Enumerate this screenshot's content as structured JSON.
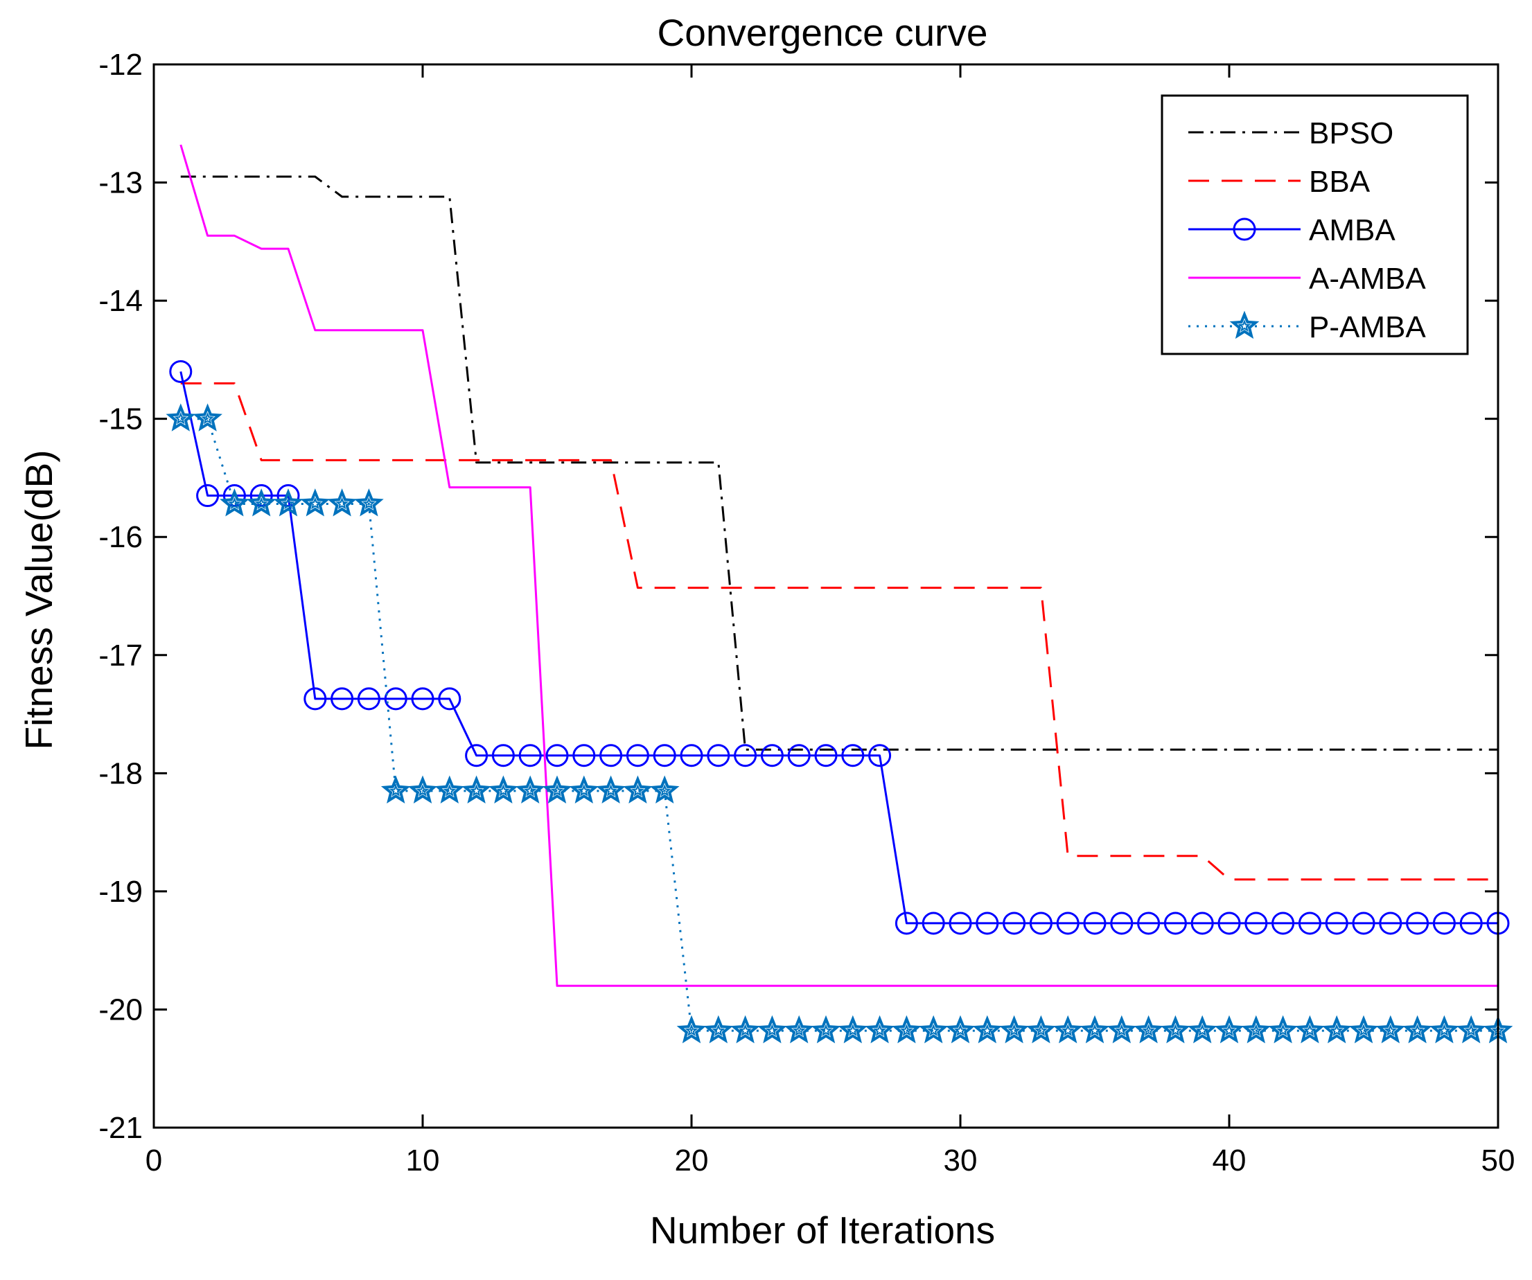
{
  "chart_data": {
    "type": "line",
    "title": "Convergence curve",
    "xlabel": "Number of Iterations",
    "ylabel": "Fitness Value(dB)",
    "xlim": [
      0,
      50
    ],
    "ylim": [
      -21,
      -12
    ],
    "xticks": [
      0,
      10,
      20,
      30,
      40,
      50
    ],
    "xtick_labels": [
      "0",
      "10",
      "20",
      "30",
      "40",
      "50"
    ],
    "yticks": [
      -12,
      -13,
      -14,
      -15,
      -16,
      -17,
      -18,
      -19,
      -20,
      -21
    ],
    "ytick_labels": [
      "-12",
      "-13",
      "-14",
      "-15",
      "-16",
      "-17",
      "-18",
      "-19",
      "-20",
      "-21"
    ],
    "grid": false,
    "legend_position": "top-right",
    "x": [
      1,
      2,
      3,
      4,
      5,
      6,
      7,
      8,
      9,
      10,
      11,
      12,
      13,
      14,
      15,
      16,
      17,
      18,
      19,
      20,
      21,
      22,
      23,
      24,
      25,
      26,
      27,
      28,
      29,
      30,
      31,
      32,
      33,
      34,
      35,
      36,
      37,
      38,
      39,
      40,
      41,
      42,
      43,
      44,
      45,
      46,
      47,
      48,
      49,
      50
    ],
    "series": [
      {
        "name": "BPSO",
        "color": "#000000",
        "line_style": "dashdot",
        "marker": "none",
        "values": [
          -12.95,
          -12.95,
          -12.95,
          -12.95,
          -12.95,
          -12.95,
          -13.12,
          -13.12,
          -13.12,
          -13.12,
          -13.12,
          -15.37,
          -15.37,
          -15.37,
          -15.37,
          -15.37,
          -15.37,
          -15.37,
          -15.37,
          -15.37,
          -15.37,
          -17.8,
          -17.8,
          -17.8,
          -17.8,
          -17.8,
          -17.8,
          -17.8,
          -17.8,
          -17.8,
          -17.8,
          -17.8,
          -17.8,
          -17.8,
          -17.8,
          -17.8,
          -17.8,
          -17.8,
          -17.8,
          -17.8,
          -17.8,
          -17.8,
          -17.8,
          -17.8,
          -17.8,
          -17.8,
          -17.8,
          -17.8,
          -17.8,
          -17.8
        ]
      },
      {
        "name": "BBA",
        "color": "#ff0000",
        "line_style": "dashed",
        "marker": "none",
        "values": [
          -14.7,
          -14.7,
          -14.7,
          -15.35,
          -15.35,
          -15.35,
          -15.35,
          -15.35,
          -15.35,
          -15.35,
          -15.35,
          -15.35,
          -15.35,
          -15.35,
          -15.35,
          -15.35,
          -15.35,
          -16.43,
          -16.43,
          -16.43,
          -16.43,
          -16.43,
          -16.43,
          -16.43,
          -16.43,
          -16.43,
          -16.43,
          -16.43,
          -16.43,
          -16.43,
          -16.43,
          -16.43,
          -16.43,
          -18.7,
          -18.7,
          -18.7,
          -18.7,
          -18.7,
          -18.7,
          -18.9,
          -18.9,
          -18.9,
          -18.9,
          -18.9,
          -18.9,
          -18.9,
          -18.9,
          -18.9,
          -18.9,
          -18.9
        ]
      },
      {
        "name": "AMBA",
        "color": "#0000ff",
        "line_style": "solid",
        "marker": "circle",
        "values": [
          -14.6,
          -15.65,
          -15.65,
          -15.65,
          -15.65,
          -17.37,
          -17.37,
          -17.37,
          -17.37,
          -17.37,
          -17.37,
          -17.85,
          -17.85,
          -17.85,
          -17.85,
          -17.85,
          -17.85,
          -17.85,
          -17.85,
          -17.85,
          -17.85,
          -17.85,
          -17.85,
          -17.85,
          -17.85,
          -17.85,
          -17.85,
          -19.27,
          -19.27,
          -19.27,
          -19.27,
          -19.27,
          -19.27,
          -19.27,
          -19.27,
          -19.27,
          -19.27,
          -19.27,
          -19.27,
          -19.27,
          -19.27,
          -19.27,
          -19.27,
          -19.27,
          -19.27,
          -19.27,
          -19.27,
          -19.27,
          -19.27,
          -19.27
        ]
      },
      {
        "name": "A-AMBA",
        "color": "#ff00ff",
        "line_style": "solid",
        "marker": "none",
        "values": [
          -12.68,
          -13.45,
          -13.45,
          -13.56,
          -13.56,
          -14.25,
          -14.25,
          -14.25,
          -14.25,
          -14.25,
          -15.58,
          -15.58,
          -15.58,
          -15.58,
          -19.8,
          -19.8,
          -19.8,
          -19.8,
          -19.8,
          -19.8,
          -19.8,
          -19.8,
          -19.8,
          -19.8,
          -19.8,
          -19.8,
          -19.8,
          -19.8,
          -19.8,
          -19.8,
          -19.8,
          -19.8,
          -19.8,
          -19.8,
          -19.8,
          -19.8,
          -19.8,
          -19.8,
          -19.8,
          -19.8,
          -19.8,
          -19.8,
          -19.8,
          -19.8,
          -19.8,
          -19.8,
          -19.8,
          -19.8,
          -19.8,
          -19.8
        ]
      },
      {
        "name": "P-AMBA",
        "color": "#0072bd",
        "line_style": "dotted",
        "marker": "star",
        "values": [
          -15.0,
          -15.0,
          -15.72,
          -15.72,
          -15.72,
          -15.72,
          -15.72,
          -15.72,
          -18.15,
          -18.15,
          -18.15,
          -18.15,
          -18.15,
          -18.15,
          -18.15,
          -18.15,
          -18.15,
          -18.15,
          -18.15,
          -20.18,
          -20.18,
          -20.18,
          -20.18,
          -20.18,
          -20.18,
          -20.18,
          -20.18,
          -20.18,
          -20.18,
          -20.18,
          -20.18,
          -20.18,
          -20.18,
          -20.18,
          -20.18,
          -20.18,
          -20.18,
          -20.18,
          -20.18,
          -20.18,
          -20.18,
          -20.18,
          -20.18,
          -20.18,
          -20.18,
          -20.18,
          -20.18,
          -20.18,
          -20.18,
          -20.18
        ]
      }
    ]
  }
}
